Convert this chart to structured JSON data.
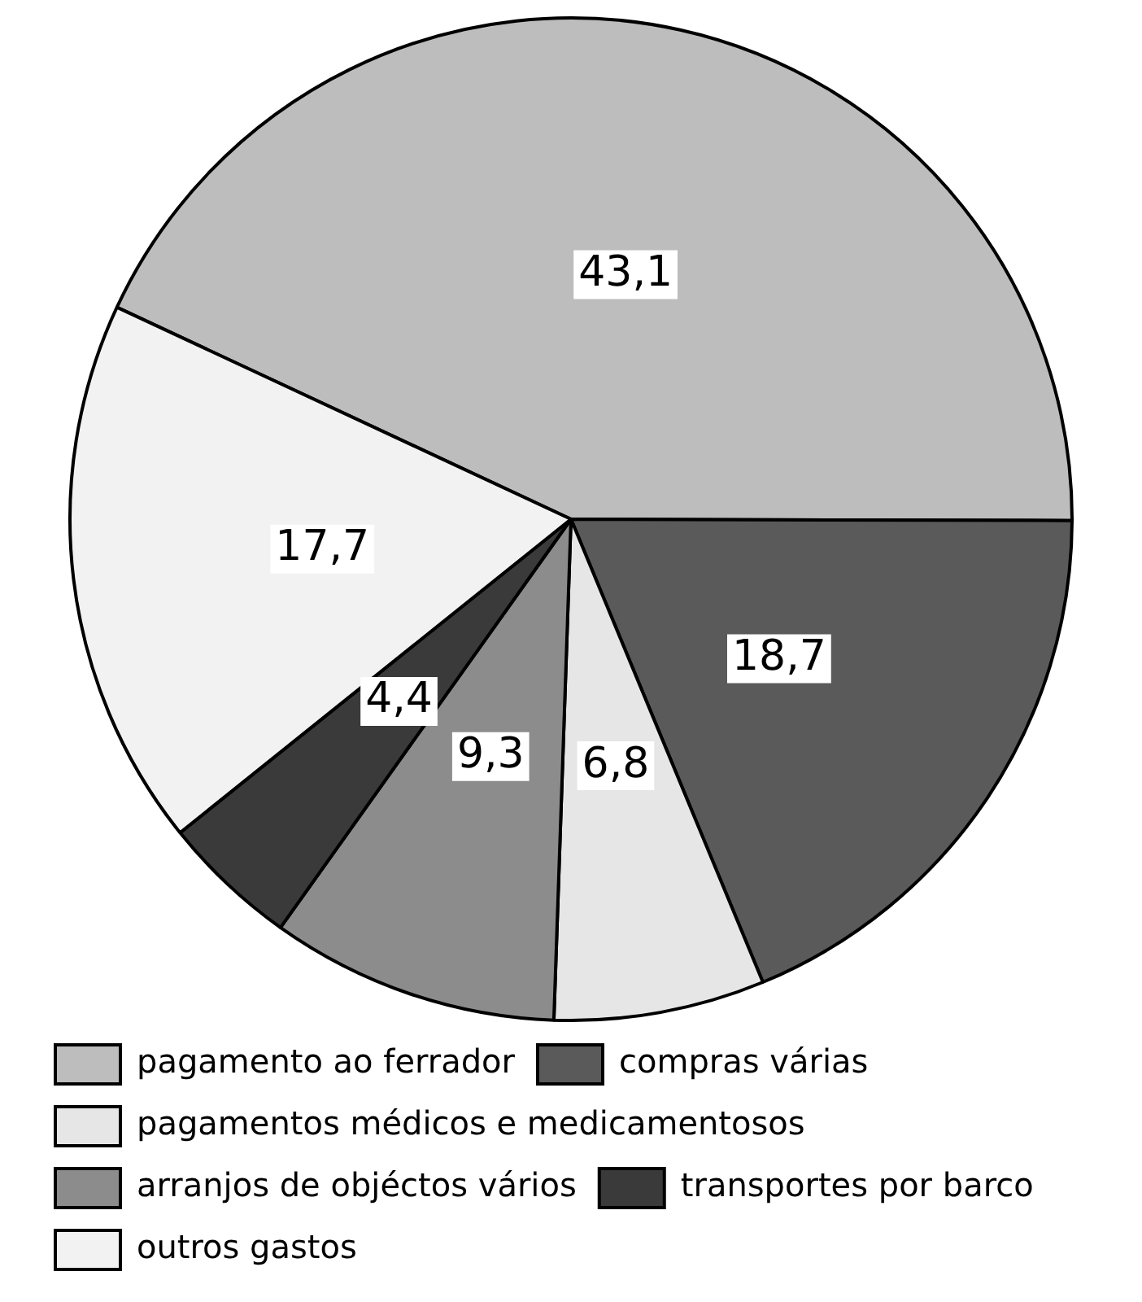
{
  "chart_data": {
    "type": "pie",
    "categories": [
      "pagamento ao ferrador",
      "compras várias",
      "pagamentos médicos e medicamentosos",
      "arranjos de objéctos vários",
      "transportes por barco",
      "outros gastos"
    ],
    "values": [
      43.1,
      18.7,
      6.8,
      9.3,
      4.4,
      17.7
    ],
    "value_labels": [
      "43,1",
      "18,7",
      "6,8",
      "9,3",
      "4,4",
      "17,7"
    ],
    "colors": [
      "#bdbdbd",
      "#5a5a5a",
      "#e6e6e6",
      "#8c8c8c",
      "#3a3a3a",
      "#f2f2f2"
    ],
    "legend": "bottom"
  }
}
